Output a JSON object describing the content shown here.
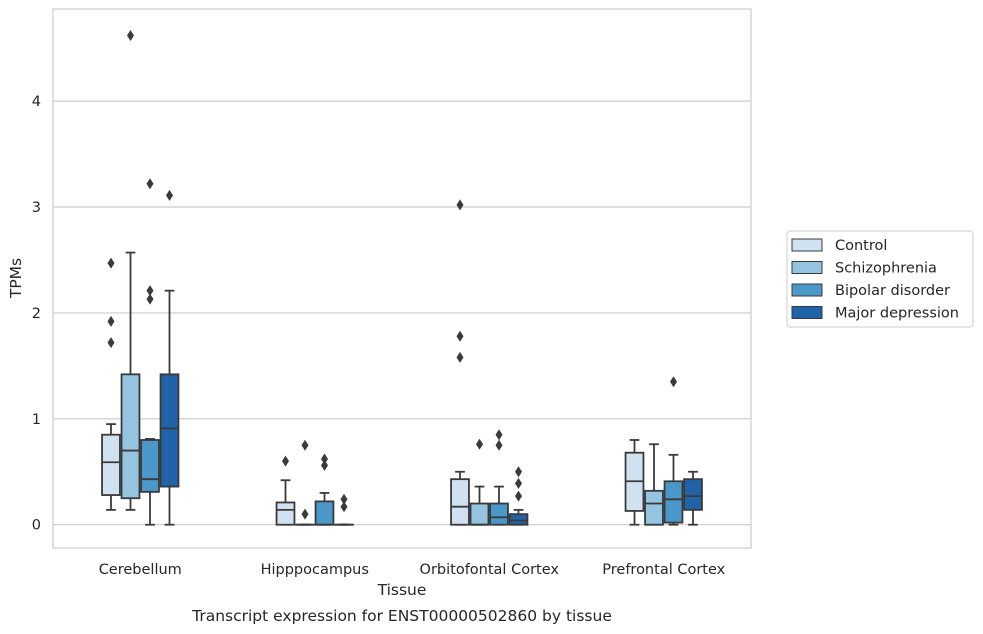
{
  "chart_data": {
    "type": "box",
    "title": "Transcript expression for ENST00000502860 by tissue",
    "xlabel": "Tissue",
    "ylabel": "TPMs",
    "ylim": [
      -0.22,
      4.87
    ],
    "yticks": [
      0,
      1,
      2,
      3,
      4
    ],
    "grid": "horizontal",
    "legend_position": "right",
    "categories": [
      "Cerebellum",
      "Hipppocampus",
      "Orbitofontal Cortex",
      "Prefrontal Cortex"
    ],
    "series": [
      {
        "name": "Control",
        "color": "#d0e1f2",
        "boxes": [
          {
            "whislo": 0.14,
            "q1": 0.28,
            "med": 0.59,
            "q3": 0.85,
            "whishi": 0.95,
            "fliers": [
              1.72,
              1.92,
              2.47
            ]
          },
          {
            "whislo": 0.0,
            "q1": 0.0,
            "med": 0.14,
            "q3": 0.21,
            "whishi": 0.42,
            "fliers": [
              0.6
            ]
          },
          {
            "whislo": 0.0,
            "q1": 0.0,
            "med": 0.17,
            "q3": 0.43,
            "whishi": 0.5,
            "fliers": [
              1.58,
              1.78,
              3.02
            ]
          },
          {
            "whislo": 0.0,
            "q1": 0.13,
            "med": 0.41,
            "q3": 0.68,
            "whishi": 0.8,
            "fliers": []
          }
        ]
      },
      {
        "name": "Schizophrenia",
        "color": "#94c4df",
        "boxes": [
          {
            "whislo": 0.14,
            "q1": 0.25,
            "med": 0.7,
            "q3": 1.42,
            "whishi": 2.57,
            "fliers": [
              4.62
            ]
          },
          {
            "whislo": 0.0,
            "q1": 0.0,
            "med": 0.0,
            "q3": 0.0,
            "whishi": 0.0,
            "fliers": [
              0.1,
              0.75
            ]
          },
          {
            "whislo": 0.0,
            "q1": 0.0,
            "med": 0.0,
            "q3": 0.2,
            "whishi": 0.36,
            "fliers": [
              0.76
            ]
          },
          {
            "whislo": 0.0,
            "q1": 0.0,
            "med": 0.2,
            "q3": 0.32,
            "whishi": 0.76,
            "fliers": []
          }
        ]
      },
      {
        "name": "Bipolar disorder",
        "color": "#4a98c9",
        "boxes": [
          {
            "whislo": 0.0,
            "q1": 0.31,
            "med": 0.43,
            "q3": 0.8,
            "whishi": 0.81,
            "fliers": [
              2.13,
              2.21,
              3.22
            ]
          },
          {
            "whislo": 0.0,
            "q1": 0.0,
            "med": 0.0,
            "q3": 0.22,
            "whishi": 0.3,
            "fliers": [
              0.56,
              0.62
            ]
          },
          {
            "whislo": 0.0,
            "q1": 0.0,
            "med": 0.07,
            "q3": 0.2,
            "whishi": 0.36,
            "fliers": [
              0.75,
              0.85
            ]
          },
          {
            "whislo": 0.0,
            "q1": 0.02,
            "med": 0.24,
            "q3": 0.41,
            "whishi": 0.66,
            "fliers": [
              1.35
            ]
          }
        ]
      },
      {
        "name": "Major depression",
        "color": "#2163a8",
        "boxes": [
          {
            "whislo": 0.0,
            "q1": 0.36,
            "med": 0.91,
            "q3": 1.42,
            "whishi": 2.21,
            "fliers": [
              3.11
            ]
          },
          {
            "whislo": 0.0,
            "q1": 0.0,
            "med": 0.0,
            "q3": 0.0,
            "whishi": 0.0,
            "fliers": [
              0.17,
              0.24
            ]
          },
          {
            "whislo": 0.0,
            "q1": 0.0,
            "med": 0.04,
            "q3": 0.1,
            "whishi": 0.14,
            "fliers": [
              0.27,
              0.39,
              0.5
            ]
          },
          {
            "whislo": 0.0,
            "q1": 0.14,
            "med": 0.27,
            "q3": 0.43,
            "whishi": 0.5,
            "fliers": []
          }
        ]
      }
    ]
  }
}
